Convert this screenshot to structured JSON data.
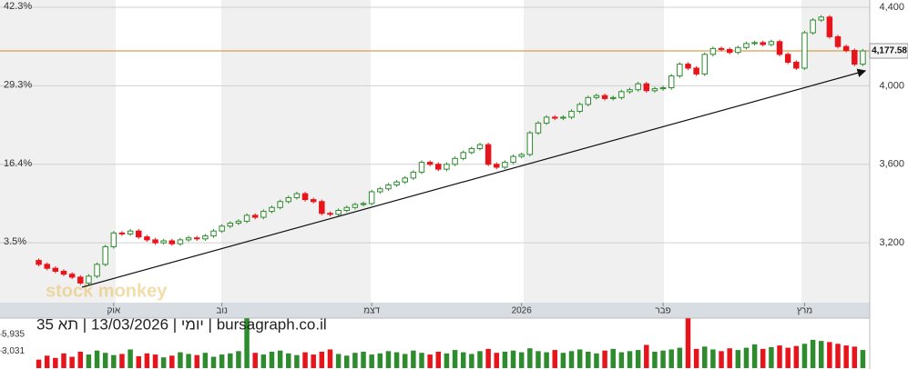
{
  "chart_data": {
    "type": "candlestick",
    "watermark": "stock monkey",
    "caption": "יומי | 13/03/2026 | תא 35 | bursagraph.co.il",
    "up_color": "#2e8b2e",
    "down_color": "#e8141b",
    "grid": true,
    "xlim": [
      -0.5,
      99.5
    ],
    "xticks": [
      {
        "value": 9,
        "label": "אוק"
      },
      {
        "value": 22,
        "label": "נוב"
      },
      {
        "value": 40,
        "label": "דצמ"
      },
      {
        "value": 58,
        "label": "2026"
      },
      {
        "value": 75,
        "label": "פבר"
      },
      {
        "value": 92,
        "label": "מרץ"
      }
    ],
    "ylim": [
      2895,
      4437
    ],
    "yticks": [
      {
        "value": 4400,
        "label": "4,400"
      },
      {
        "value": 4000,
        "label": "4,000"
      },
      {
        "value": 3600,
        "label": "3,600"
      },
      {
        "value": 3200,
        "label": "3,200"
      }
    ],
    "y2lim": [
      -6.4,
      43.5
    ],
    "y2ticks": [
      {
        "value": 42.3,
        "label": "42.3%"
      },
      {
        "value": 29.3,
        "label": "29.3%"
      },
      {
        "value": 16.4,
        "label": "16.4%"
      },
      {
        "value": 3.5,
        "label": "3.5%"
      }
    ],
    "hline": {
      "value": 4177.58,
      "label": "4,177.58",
      "color": "#d08a2a"
    },
    "vlim": [
      0,
      8840
    ],
    "vticks": [
      {
        "value": 5935,
        "label": "5,935"
      },
      {
        "value": 3031,
        "label": "3,031"
      }
    ],
    "open": [
      3110,
      3090,
      3070,
      3055,
      3040,
      3025,
      2995,
      3030,
      3090,
      3180,
      3250,
      3245,
      3260,
      3230,
      3215,
      3200,
      3210,
      3195,
      3215,
      3225,
      3220,
      3235,
      3260,
      3285,
      3300,
      3310,
      3340,
      3330,
      3360,
      3380,
      3410,
      3430,
      3450,
      3420,
      3410,
      3350,
      3345,
      3365,
      3380,
      3395,
      3400,
      3460,
      3475,
      3495,
      3510,
      3530,
      3560,
      3610,
      3600,
      3575,
      3600,
      3630,
      3660,
      3680,
      3700,
      3600,
      3585,
      3610,
      3640,
      3650,
      3760,
      3810,
      3840,
      3835,
      3840,
      3870,
      3905,
      3940,
      3950,
      3935,
      3940,
      3970,
      3980,
      4010,
      3975,
      3985,
      3990,
      4050,
      4110,
      4090,
      4060,
      4160,
      4190,
      4185,
      4170,
      4195,
      4215,
      4220,
      4210,
      4225,
      4160,
      4120,
      4090,
      4270,
      4335,
      4350,
      4250,
      4200,
      4180,
      4110
    ],
    "high": [
      3120,
      3100,
      3080,
      3065,
      3050,
      3035,
      3040,
      3100,
      3190,
      3260,
      3260,
      3270,
      3270,
      3240,
      3225,
      3220,
      3220,
      3225,
      3235,
      3235,
      3245,
      3270,
      3295,
      3310,
      3320,
      3350,
      3350,
      3370,
      3390,
      3420,
      3440,
      3460,
      3460,
      3430,
      3420,
      3360,
      3375,
      3390,
      3405,
      3410,
      3470,
      3485,
      3505,
      3520,
      3540,
      3570,
      3620,
      3620,
      3610,
      3610,
      3640,
      3670,
      3690,
      3710,
      3710,
      3610,
      3620,
      3650,
      3660,
      3770,
      3820,
      3850,
      3850,
      3850,
      3880,
      3915,
      3950,
      3960,
      3960,
      3950,
      3980,
      3990,
      4020,
      4020,
      3995,
      4000,
      4060,
      4120,
      4120,
      4100,
      4170,
      4200,
      4200,
      4195,
      4205,
      4225,
      4230,
      4230,
      4235,
      4235,
      4170,
      4130,
      4280,
      4345,
      4360,
      4360,
      4260,
      4210,
      4190,
      4187.58
    ],
    "low": [
      3080,
      3060,
      3045,
      3030,
      3015,
      2985,
      2985,
      3020,
      3080,
      3170,
      3235,
      3235,
      3220,
      3205,
      3190,
      3190,
      3185,
      3185,
      3205,
      3210,
      3210,
      3225,
      3250,
      3275,
      3290,
      3300,
      3320,
      3320,
      3350,
      3370,
      3400,
      3420,
      3410,
      3400,
      3340,
      3335,
      3335,
      3355,
      3370,
      3385,
      3390,
      3450,
      3465,
      3485,
      3500,
      3520,
      3550,
      3590,
      3565,
      3565,
      3590,
      3620,
      3650,
      3670,
      3590,
      3575,
      3575,
      3600,
      3630,
      3640,
      3750,
      3800,
      3825,
      3825,
      3830,
      3860,
      3895,
      3930,
      3925,
      3925,
      3930,
      3960,
      3970,
      3965,
      3965,
      3975,
      3980,
      4040,
      4080,
      4050,
      4050,
      4150,
      4175,
      4160,
      4160,
      4185,
      4205,
      4200,
      4200,
      4150,
      4110,
      4080,
      4080,
      4260,
      4325,
      4240,
      4190,
      4170,
      4100,
      4100
    ],
    "close": [
      3090,
      3070,
      3055,
      3040,
      3025,
      2995,
      3030,
      3090,
      3180,
      3250,
      3245,
      3260,
      3230,
      3215,
      3200,
      3210,
      3195,
      3215,
      3225,
      3220,
      3235,
      3260,
      3285,
      3300,
      3310,
      3340,
      3330,
      3360,
      3380,
      3410,
      3430,
      3450,
      3420,
      3410,
      3350,
      3345,
      3365,
      3380,
      3395,
      3400,
      3460,
      3475,
      3495,
      3510,
      3530,
      3560,
      3610,
      3600,
      3575,
      3600,
      3630,
      3660,
      3680,
      3700,
      3600,
      3585,
      3610,
      3640,
      3650,
      3760,
      3810,
      3840,
      3835,
      3840,
      3870,
      3905,
      3940,
      3950,
      3935,
      3940,
      3970,
      3980,
      4010,
      3975,
      3985,
      3990,
      4050,
      4110,
      4090,
      4060,
      4160,
      4190,
      4185,
      4170,
      4195,
      4215,
      4220,
      4210,
      4225,
      4160,
      4120,
      4090,
      4270,
      4335,
      4350,
      4250,
      4200,
      4180,
      4110,
      4177.58
    ],
    "volume": [
      1500,
      2200,
      1800,
      2600,
      2000,
      2900,
      2400,
      3100,
      2700,
      2300,
      2500,
      3300,
      2100,
      2600,
      2400,
      1900,
      2200,
      2800,
      2500,
      2300,
      2700,
      2000,
      2400,
      2600,
      3000,
      8800,
      2700,
      2400,
      2900,
      3100,
      2600,
      2300,
      2800,
      2400,
      2900,
      3300,
      2500,
      2200,
      2700,
      2900,
      2400,
      2600,
      3000,
      2800,
      2500,
      3100,
      2700,
      2400,
      2900,
      2600,
      3200,
      2800,
      2500,
      3000,
      3400,
      2700,
      2900,
      3100,
      2800,
      3500,
      3000,
      2800,
      3200,
      2700,
      3000,
      3300,
      2900,
      2600,
      3100,
      3400,
      2800,
      3000,
      3200,
      4100,
      2900,
      3100,
      3300,
      3600,
      8800,
      3400,
      3800,
      3300,
      3000,
      3500,
      3200,
      3600,
      4200,
      3400,
      3700,
      4000,
      3600,
      3900,
      4300,
      5000,
      4800,
      4600,
      4300,
      4000,
      3800,
      3200
    ]
  }
}
